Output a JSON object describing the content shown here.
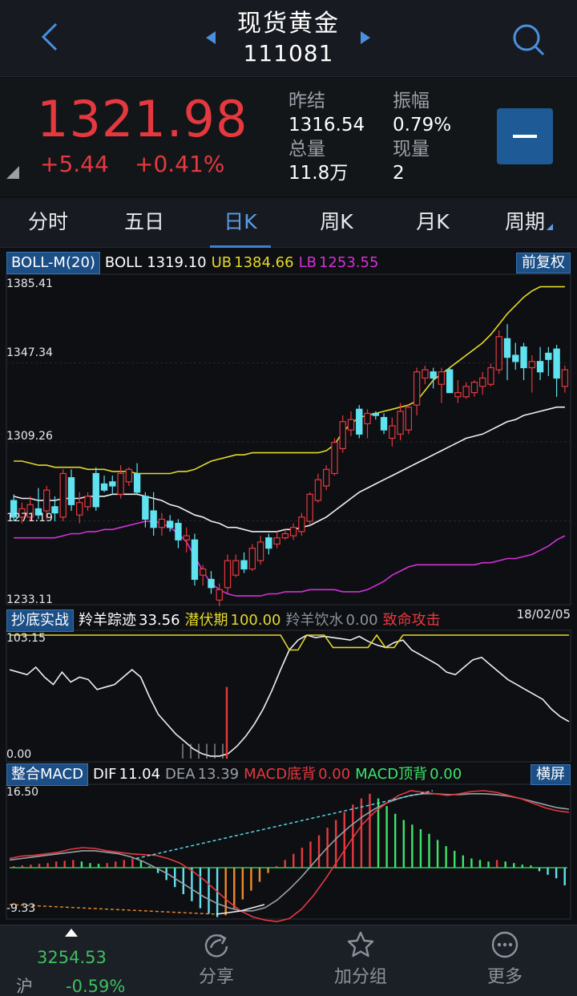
{
  "header": {
    "title": "现货黄金",
    "code": "111081"
  },
  "quote": {
    "price": "1321.98",
    "change": "+5.44",
    "change_pct": "+0.41%",
    "prev_settle_label": "昨结",
    "prev_settle": "1316.54",
    "amplitude_label": "振幅",
    "amplitude": "0.79%",
    "volume_label": "总量",
    "volume": "11.8万",
    "current_vol_label": "现量",
    "current_vol": "2"
  },
  "tabs": [
    {
      "label": "分时"
    },
    {
      "label": "五日"
    },
    {
      "label": "日K"
    },
    {
      "label": "周K"
    },
    {
      "label": "月K"
    },
    {
      "label": "周期"
    }
  ],
  "boll_legend": {
    "name": "BOLL-M(20)",
    "boll_label": "BOLL",
    "boll": "1319.10",
    "ub_label": "UB",
    "ub": "1384.66",
    "lb_label": "LB",
    "lb": "1253.55",
    "adjust_button": "前复权"
  },
  "boll_axis": [
    "1385.41",
    "1347.34",
    "1309.26",
    "1271.19",
    "1233.11"
  ],
  "second_legend": {
    "name": "抄底实战",
    "t1_label": "羚羊踪迹",
    "t1": "33.56",
    "t2_label": "潜伏期",
    "t2": "100.00",
    "t3_label": "羚羊饮水",
    "t3": "0.00",
    "t4_label": "致命攻击",
    "date": "18/02/05"
  },
  "second_axis": [
    "103.15",
    "0.00"
  ],
  "macd_legend": {
    "name": "整合MACD",
    "dif_label": "DIF",
    "dif": "11.04",
    "dea_label": "DEA",
    "dea": "13.39",
    "bottom_div_label": "MACD底背",
    "bottom_div": "0.00",
    "top_div_label": "MACD顶背",
    "top_div": "0.00",
    "landscape_button": "横屏"
  },
  "macd_axis": [
    "16.50",
    "-9.33"
  ],
  "bottom_bar": {
    "index_value": "3254.53",
    "index_name": "沪",
    "index_pct": "-0.59%",
    "share": "分享",
    "add_group": "加分组",
    "more": "更多"
  },
  "colors": {
    "up": "#e5393f",
    "down": "#5fe3f0",
    "ub": "#e4d72a",
    "mid": "#f0f0f0",
    "lb": "#d630d6",
    "green": "#3fe36a",
    "accent": "#1c4f86"
  },
  "chart_data": {
    "type": "candlestick",
    "y_range": [
      1233.11,
      1385.41
    ],
    "candles": [
      {
        "o": 1281,
        "h": 1284,
        "l": 1271,
        "c": 1273
      },
      {
        "o": 1273,
        "h": 1280,
        "l": 1270,
        "c": 1277
      },
      {
        "o": 1273,
        "h": 1283,
        "l": 1271,
        "c": 1279
      },
      {
        "o": 1277,
        "h": 1287,
        "l": 1272,
        "c": 1274
      },
      {
        "o": 1276,
        "h": 1288,
        "l": 1272,
        "c": 1286
      },
      {
        "o": 1278,
        "h": 1283,
        "l": 1271,
        "c": 1275
      },
      {
        "o": 1273,
        "h": 1296,
        "l": 1271,
        "c": 1294
      },
      {
        "o": 1292,
        "h": 1296,
        "l": 1276,
        "c": 1279
      },
      {
        "o": 1274,
        "h": 1285,
        "l": 1270,
        "c": 1280
      },
      {
        "o": 1278,
        "h": 1285,
        "l": 1276,
        "c": 1283
      },
      {
        "o": 1294,
        "h": 1297,
        "l": 1276,
        "c": 1278
      },
      {
        "o": 1289,
        "h": 1293,
        "l": 1285,
        "c": 1286
      },
      {
        "o": 1290,
        "h": 1293,
        "l": 1284,
        "c": 1288
      },
      {
        "o": 1284,
        "h": 1298,
        "l": 1282,
        "c": 1294
      },
      {
        "o": 1290,
        "h": 1297,
        "l": 1288,
        "c": 1296
      },
      {
        "o": 1294,
        "h": 1299,
        "l": 1284,
        "c": 1285
      },
      {
        "o": 1283,
        "h": 1285,
        "l": 1268,
        "c": 1272
      },
      {
        "o": 1276,
        "h": 1285,
        "l": 1264,
        "c": 1268
      },
      {
        "o": 1268,
        "h": 1275,
        "l": 1264,
        "c": 1272
      },
      {
        "o": 1271,
        "h": 1274,
        "l": 1266,
        "c": 1268
      },
      {
        "o": 1270,
        "h": 1272,
        "l": 1258,
        "c": 1262
      },
      {
        "o": 1262,
        "h": 1268,
        "l": 1256,
        "c": 1264
      },
      {
        "o": 1262,
        "h": 1265,
        "l": 1240,
        "c": 1243
      },
      {
        "o": 1245,
        "h": 1250,
        "l": 1240,
        "c": 1248
      },
      {
        "o": 1243,
        "h": 1247,
        "l": 1236,
        "c": 1239
      },
      {
        "o": 1233,
        "h": 1241,
        "l": 1230,
        "c": 1238
      },
      {
        "o": 1239,
        "h": 1255,
        "l": 1236,
        "c": 1252
      },
      {
        "o": 1245,
        "h": 1255,
        "l": 1244,
        "c": 1252
      },
      {
        "o": 1252,
        "h": 1256,
        "l": 1246,
        "c": 1248
      },
      {
        "o": 1248,
        "h": 1260,
        "l": 1247,
        "c": 1258
      },
      {
        "o": 1252,
        "h": 1264,
        "l": 1250,
        "c": 1261
      },
      {
        "o": 1263,
        "h": 1265,
        "l": 1255,
        "c": 1258
      },
      {
        "o": 1260,
        "h": 1266,
        "l": 1258,
        "c": 1263
      },
      {
        "o": 1263,
        "h": 1267,
        "l": 1262,
        "c": 1265
      },
      {
        "o": 1264,
        "h": 1270,
        "l": 1262,
        "c": 1268
      },
      {
        "o": 1266,
        "h": 1275,
        "l": 1264,
        "c": 1273
      },
      {
        "o": 1271,
        "h": 1285,
        "l": 1269,
        "c": 1284
      },
      {
        "o": 1281,
        "h": 1294,
        "l": 1280,
        "c": 1291
      },
      {
        "o": 1288,
        "h": 1298,
        "l": 1286,
        "c": 1296
      },
      {
        "o": 1294,
        "h": 1311,
        "l": 1293,
        "c": 1309
      },
      {
        "o": 1306,
        "h": 1322,
        "l": 1304,
        "c": 1319
      },
      {
        "o": 1315,
        "h": 1324,
        "l": 1312,
        "c": 1320
      },
      {
        "o": 1325,
        "h": 1327,
        "l": 1311,
        "c": 1313
      },
      {
        "o": 1318,
        "h": 1325,
        "l": 1311,
        "c": 1323
      },
      {
        "o": 1323,
        "h": 1324,
        "l": 1320,
        "c": 1322
      },
      {
        "o": 1321,
        "h": 1323,
        "l": 1313,
        "c": 1315
      },
      {
        "o": 1311,
        "h": 1321,
        "l": 1307,
        "c": 1317
      },
      {
        "o": 1313,
        "h": 1328,
        "l": 1310,
        "c": 1324
      },
      {
        "o": 1315,
        "h": 1327,
        "l": 1313,
        "c": 1326
      },
      {
        "o": 1327,
        "h": 1345,
        "l": 1322,
        "c": 1343
      },
      {
        "o": 1340,
        "h": 1346,
        "l": 1337,
        "c": 1344
      },
      {
        "o": 1343,
        "h": 1345,
        "l": 1335,
        "c": 1340
      },
      {
        "o": 1337,
        "h": 1345,
        "l": 1328,
        "c": 1343
      },
      {
        "o": 1344,
        "h": 1345,
        "l": 1333,
        "c": 1333
      },
      {
        "o": 1331,
        "h": 1339,
        "l": 1328,
        "c": 1333
      },
      {
        "o": 1331,
        "h": 1338,
        "l": 1330,
        "c": 1336
      },
      {
        "o": 1333,
        "h": 1339,
        "l": 1331,
        "c": 1338
      },
      {
        "o": 1336,
        "h": 1343,
        "l": 1332,
        "c": 1340
      },
      {
        "o": 1337,
        "h": 1347,
        "l": 1336,
        "c": 1345
      },
      {
        "o": 1344,
        "h": 1363,
        "l": 1342,
        "c": 1360
      },
      {
        "o": 1359,
        "h": 1366,
        "l": 1339,
        "c": 1350
      },
      {
        "o": 1351,
        "h": 1357,
        "l": 1344,
        "c": 1348
      },
      {
        "o": 1355,
        "h": 1357,
        "l": 1339,
        "c": 1345
      },
      {
        "o": 1345,
        "h": 1351,
        "l": 1333,
        "c": 1348
      },
      {
        "o": 1348,
        "h": 1355,
        "l": 1339,
        "c": 1343
      },
      {
        "o": 1352,
        "h": 1355,
        "l": 1341,
        "c": 1349
      },
      {
        "o": 1354,
        "h": 1356,
        "l": 1331,
        "c": 1340
      },
      {
        "o": 1336,
        "h": 1346,
        "l": 1333,
        "c": 1344
      }
    ],
    "ub": [
      1300,
      1300,
      1299,
      1298,
      1298,
      1297,
      1297,
      1297,
      1297,
      1296,
      1296,
      1296,
      1295,
      1295,
      1295,
      1294,
      1294,
      1294,
      1294,
      1294,
      1295,
      1295,
      1296,
      1298,
      1300,
      1301,
      1302,
      1303,
      1303,
      1304,
      1304,
      1304,
      1304,
      1304,
      1304,
      1304,
      1304,
      1304,
      1305,
      1308,
      1314,
      1318,
      1321,
      1322,
      1323,
      1324,
      1325,
      1326,
      1327,
      1329,
      1334,
      1339,
      1342,
      1345,
      1348,
      1351,
      1354,
      1357,
      1361,
      1366,
      1371,
      1375,
      1379,
      1382,
      1384,
      1384,
      1384,
      1384
    ],
    "mid": [
      1283,
      1282,
      1282,
      1281,
      1281,
      1281,
      1282,
      1282,
      1282,
      1283,
      1283,
      1283,
      1284,
      1284,
      1284,
      1284,
      1283,
      1282,
      1281,
      1279,
      1278,
      1276,
      1274,
      1273,
      1271,
      1270,
      1268,
      1268,
      1267,
      1266,
      1266,
      1266,
      1266,
      1267,
      1267,
      1268,
      1269,
      1271,
      1273,
      1276,
      1279,
      1282,
      1285,
      1287,
      1289,
      1291,
      1293,
      1295,
      1297,
      1299,
      1301,
      1303,
      1305,
      1307,
      1309,
      1311,
      1312,
      1313,
      1315,
      1317,
      1319,
      1320,
      1322,
      1323,
      1324,
      1325,
      1326,
      1326
    ],
    "lb": [
      1263,
      1263,
      1263,
      1263,
      1263,
      1263,
      1264,
      1265,
      1265,
      1266,
      1266,
      1267,
      1267,
      1268,
      1269,
      1270,
      1271,
      1271,
      1270,
      1268,
      1265,
      1261,
      1254,
      1247,
      1241,
      1238,
      1236,
      1235,
      1235,
      1235,
      1235,
      1236,
      1236,
      1237,
      1237,
      1237,
      1238,
      1238,
      1238,
      1238,
      1237,
      1237,
      1237,
      1238,
      1240,
      1242,
      1245,
      1247,
      1249,
      1250,
      1250,
      1250,
      1250,
      1250,
      1250,
      1250,
      1250,
      1251,
      1251,
      1252,
      1253,
      1253,
      1254,
      1255,
      1257,
      1259,
      1262,
      1264
    ]
  }
}
